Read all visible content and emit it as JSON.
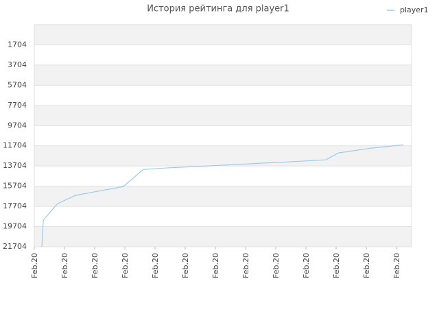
{
  "chart_data": {
    "type": "line",
    "title": "История рейтинга для player1",
    "x": [
      0.25,
      0.3,
      0.77,
      1.36,
      2.95,
      3.61,
      4.32,
      5.68,
      7.05,
      8.41,
      9.66,
      10.07,
      11.14,
      12.23
    ],
    "series": [
      {
        "name": "player1",
        "color": "#9cc9ee",
        "values": [
          21704,
          19060,
          17433,
          16620,
          15738,
          14043,
          13908,
          13704,
          13501,
          13297,
          13094,
          12416,
          11941,
          11602
        ]
      }
    ],
    "xlim": [
      0,
      12.5
    ],
    "xticks": [
      {
        "value": 0,
        "label": "Feb.20"
      },
      {
        "value": 1,
        "label": "Feb.20"
      },
      {
        "value": 2,
        "label": "Feb.20"
      },
      {
        "value": 3,
        "label": "Feb.20"
      },
      {
        "value": 4,
        "label": "Feb.20"
      },
      {
        "value": 5,
        "label": "Feb.20"
      },
      {
        "value": 6,
        "label": "Feb.20"
      },
      {
        "value": 7,
        "label": "Feb.20"
      },
      {
        "value": 8,
        "label": "Feb.20"
      },
      {
        "value": 9,
        "label": "Feb.20"
      },
      {
        "value": 10,
        "label": "Feb.20"
      },
      {
        "value": 11,
        "label": "Feb.20"
      },
      {
        "value": 12,
        "label": "Feb.20"
      }
    ],
    "ylim": [
      21704,
      -296
    ],
    "yticks": [
      1704,
      3704,
      5704,
      7704,
      9704,
      11704,
      13704,
      15704,
      17704,
      19704,
      21704
    ],
    "grid": true,
    "legend": "top-right"
  }
}
